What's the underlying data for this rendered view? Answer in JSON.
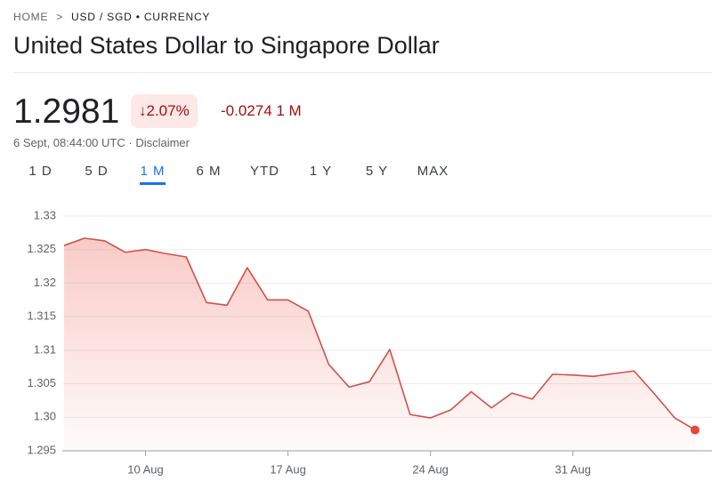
{
  "breadcrumb": {
    "home": "HOME",
    "current": "USD / SGD • CURRENCY"
  },
  "title": "United States Dollar to Singapore Dollar",
  "price": "1.2981",
  "change_percent": "2.07%",
  "change_text": "-0.0274 1 M",
  "timestamp": "6 Sept, 08:44:00 UTC",
  "disclaimer": "Disclaimer",
  "tabs": [
    "1 D",
    "5 D",
    "1 M",
    "6 M",
    "YTD",
    "1 Y",
    "5 Y",
    "MAX"
  ],
  "active_tab_index": 2,
  "chart_data": {
    "type": "line",
    "categories": [
      null,
      null,
      null,
      null,
      "10 Aug",
      null,
      null,
      null,
      null,
      null,
      null,
      "17 Aug",
      null,
      null,
      null,
      null,
      null,
      null,
      "24 Aug",
      null,
      null,
      null,
      null,
      null,
      null,
      "31 Aug",
      null,
      null,
      null,
      null,
      null,
      null
    ],
    "values": [
      1.3256,
      1.3267,
      1.3263,
      1.3246,
      1.325,
      1.3244,
      1.3239,
      1.3171,
      1.3167,
      1.3223,
      1.3175,
      1.3175,
      1.3158,
      1.3079,
      1.3045,
      1.3053,
      1.3101,
      1.3004,
      1.2999,
      1.3011,
      1.3038,
      1.3014,
      1.3036,
      1.3027,
      1.3064,
      1.3063,
      1.3061,
      1.3065,
      1.3069,
      1.3035,
      1.2999,
      1.2981
    ],
    "color": "#d0514a",
    "ylim": [
      1.295,
      1.33
    ],
    "yticks": [
      1.295,
      {
        "value": 1.3,
        "label": "1.30"
      },
      1.305,
      1.31,
      1.315,
      1.32,
      1.325,
      1.33
    ],
    "grid": true
  }
}
